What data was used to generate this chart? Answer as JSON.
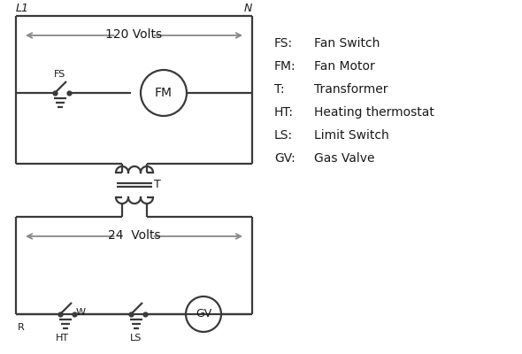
{
  "bg_color": "#ffffff",
  "line_color": "#3a3a3a",
  "arrow_color": "#888888",
  "text_color": "#1a1a1a",
  "legend_items": [
    [
      "FS:",
      "Fan Switch"
    ],
    [
      "FM:",
      "Fan Motor"
    ],
    [
      "T:",
      "Transformer"
    ],
    [
      "HT:",
      "Heating thermostat"
    ],
    [
      "LS:",
      "Limit Switch"
    ],
    [
      "GV:",
      "Gas Valve"
    ]
  ],
  "label_L1": "L1",
  "label_N": "N",
  "label_120V": "120 Volts",
  "label_24V": "24  Volts",
  "label_T": "T",
  "label_FS": "FS",
  "label_FM": "FM",
  "label_GV": "GV",
  "label_R": "R",
  "label_W": "W",
  "label_HT": "HT",
  "label_LS": "LS"
}
